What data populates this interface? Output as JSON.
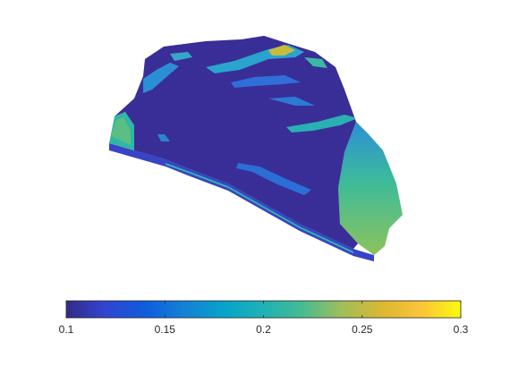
{
  "chart_data": {
    "type": "heatmap",
    "title": "",
    "colormap": "parula",
    "colorbar": {
      "orientation": "horizontal",
      "placement": "bottom",
      "clim": [
        0.1,
        0.3
      ],
      "ticks": [
        0.1,
        0.15,
        0.2,
        0.25,
        0.3
      ],
      "tick_labels": [
        "0.1",
        "0.15",
        "0.2",
        "0.25",
        "0.3"
      ],
      "label": ""
    },
    "value_range_shown": [
      0.1,
      0.3
    ],
    "field_regions": [
      {
        "region": "top surface interior",
        "value": 0.11
      },
      {
        "region": "top surface streaks (upper left)",
        "value": 0.18
      },
      {
        "region": "top surface ridge (upper middle)",
        "value": 0.24
      },
      {
        "region": "left side wall",
        "value": 0.2
      },
      {
        "region": "bottom side wall band",
        "value": 0.17
      },
      {
        "region": "right side wall",
        "value": 0.21
      }
    ],
    "grid": false,
    "axes_visible": false,
    "colors": {
      "low": "#352a87",
      "mid": "#1fb1b6",
      "high": "#f9fb0e"
    }
  }
}
